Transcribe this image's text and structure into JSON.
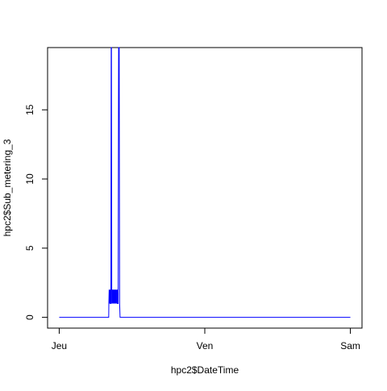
{
  "chart_data": {
    "type": "line",
    "title": "",
    "xlabel": "hpc2$DateTime",
    "ylabel": "hpc2$Sub_metering_3",
    "x_unit": "day",
    "x_tick_labels": [
      "Jeu",
      "Ven",
      "Sam"
    ],
    "x_tick_values": [
      0,
      1,
      2
    ],
    "y_ticks": [
      0,
      5,
      10,
      15
    ],
    "xlim": [
      -0.08,
      2.08
    ],
    "ylim": [
      -0.78,
      19.5
    ],
    "grid": false,
    "legend": "none",
    "series": [
      {
        "color": "#0000ff",
        "points": [
          [
            0.0,
            0
          ],
          [
            0.33,
            0
          ],
          [
            0.34,
            0
          ],
          [
            0.341,
            1
          ],
          [
            0.343,
            2
          ],
          [
            0.345,
            1
          ],
          [
            0.347,
            2
          ],
          [
            0.349,
            1
          ],
          [
            0.35,
            2
          ],
          [
            0.352,
            1
          ],
          [
            0.355,
            1
          ],
          [
            0.357,
            19.5
          ],
          [
            0.359,
            19.5
          ],
          [
            0.361,
            1
          ],
          [
            0.364,
            2
          ],
          [
            0.366,
            1
          ],
          [
            0.369,
            2
          ],
          [
            0.371,
            1
          ],
          [
            0.374,
            2
          ],
          [
            0.376,
            1
          ],
          [
            0.379,
            2
          ],
          [
            0.381,
            1
          ],
          [
            0.384,
            2
          ],
          [
            0.386,
            1
          ],
          [
            0.389,
            2
          ],
          [
            0.391,
            1
          ],
          [
            0.394,
            2
          ],
          [
            0.396,
            1
          ],
          [
            0.399,
            2
          ],
          [
            0.401,
            1
          ],
          [
            0.405,
            1
          ],
          [
            0.408,
            19.5
          ],
          [
            0.412,
            19.5
          ],
          [
            0.415,
            1
          ],
          [
            0.418,
            0
          ],
          [
            2.0,
            0
          ]
        ]
      }
    ]
  }
}
